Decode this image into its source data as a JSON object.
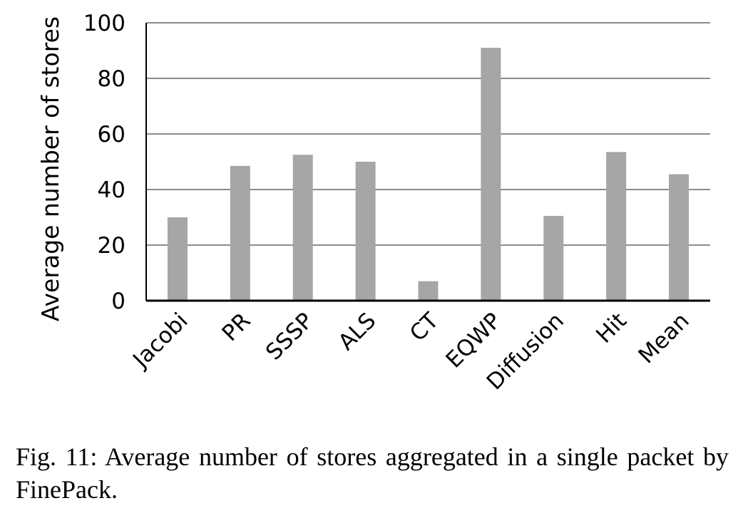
{
  "chart_data": {
    "type": "bar",
    "categories": [
      "Jacobi",
      "PR",
      "SSSP",
      "ALS",
      "CT",
      "EQWP",
      "Diffusion",
      "Hit",
      "Mean"
    ],
    "values": [
      30,
      48.5,
      52.5,
      50,
      7,
      91,
      30.5,
      53.5,
      45.5
    ],
    "ylabel": "Average number of stores",
    "ylim": [
      0,
      100
    ],
    "yticks": [
      0,
      20,
      40,
      60,
      80,
      100
    ],
    "grid": true,
    "bar_color": "#a6a6a6",
    "grid_color": "#8c8c8c"
  },
  "caption": "Fig. 11: Average number of stores aggregated in a single packet by FinePack."
}
